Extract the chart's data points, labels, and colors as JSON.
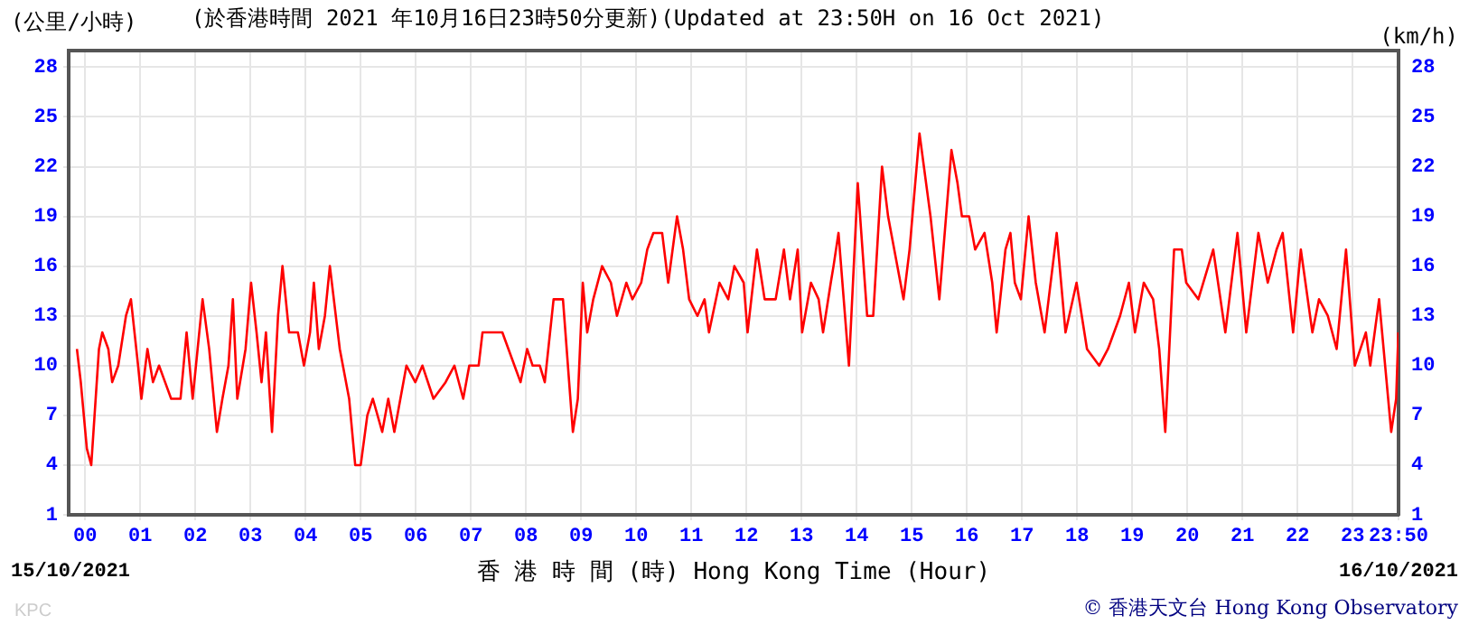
{
  "chart_data": {
    "type": "line",
    "title": "(於香港時間 2021 年10月16日23時50分更新)(Updated at 23:50H on 16 Oct 2021)",
    "ylabel": "(公里/小時)",
    "y2label": "(km/h)",
    "xlabel": "香 港 時 間 (時) Hong Kong Time (Hour)",
    "annotations": [
      "15/10/2021",
      "16/10/2021",
      "© 香港天文台 Hong Kong Observatory",
      "KPC"
    ],
    "series": [
      {
        "color": "#ff0000",
        "x": [
          -0.15,
          -0.08,
          0.03,
          0.11,
          0.17,
          0.25,
          0.31,
          0.42,
          0.49,
          0.6,
          0.74,
          0.83,
          0.96,
          1.02,
          1.13,
          1.23,
          1.34,
          1.45,
          1.56,
          1.73,
          1.84,
          1.95,
          2.13,
          2.25,
          2.39,
          2.49,
          2.6,
          2.68,
          2.76,
          2.91,
          3.01,
          3.11,
          3.2,
          3.28,
          3.39,
          3.5,
          3.58,
          3.7,
          3.86,
          3.97,
          4.08,
          4.15,
          4.24,
          4.35,
          4.44,
          4.62,
          4.79,
          4.9,
          5.0,
          5.12,
          5.22,
          5.39,
          5.5,
          5.61,
          5.83,
          5.99,
          6.12,
          6.32,
          6.54,
          6.7,
          6.86,
          6.97,
          7.14,
          7.21,
          7.36,
          7.57,
          7.79,
          7.9,
          8.02,
          8.12,
          8.25,
          8.34,
          8.5,
          8.67,
          8.85,
          8.94,
          9.03,
          9.11,
          9.22,
          9.38,
          9.54,
          9.65,
          9.82,
          9.93,
          10.09,
          10.2,
          10.31,
          10.47,
          10.58,
          10.74,
          10.85,
          10.96,
          11.11,
          11.24,
          11.32,
          11.51,
          11.67,
          11.78,
          11.95,
          12.02,
          12.19,
          12.33,
          12.53,
          12.68,
          12.79,
          12.93,
          13.01,
          13.17,
          13.31,
          13.39,
          13.53,
          13.58,
          13.67,
          13.86,
          14.02,
          14.19,
          14.3,
          14.46,
          14.57,
          14.85,
          14.96,
          15.14,
          15.34,
          15.5,
          15.72,
          15.83,
          15.91,
          16.04,
          16.15,
          16.32,
          16.46,
          16.54,
          16.7,
          16.79,
          16.87,
          16.98,
          17.12,
          17.25,
          17.41,
          17.63,
          17.79,
          17.99,
          18.18,
          18.4,
          18.56,
          18.78,
          18.94,
          19.05,
          19.21,
          19.38,
          19.49,
          19.6,
          19.76,
          19.9,
          19.98,
          20.2,
          20.47,
          20.69,
          20.91,
          21.07,
          21.29,
          21.46,
          21.62,
          21.73,
          21.92,
          22.06,
          22.27,
          22.39,
          22.55,
          22.71,
          22.88,
          23.04,
          23.24,
          23.32,
          23.48,
          23.7,
          23.79,
          23.83
        ],
        "values": [
          11,
          9,
          5,
          4,
          7,
          11,
          12,
          11,
          9,
          10,
          13,
          14,
          10,
          8,
          11,
          9,
          10,
          9,
          8,
          8,
          12,
          8,
          14,
          11,
          6,
          8,
          10,
          14,
          8,
          11,
          15,
          12,
          9,
          12,
          6,
          13,
          16,
          12,
          12,
          10,
          12,
          15,
          11,
          13,
          16,
          11,
          8,
          4,
          4,
          7,
          8,
          6,
          8,
          6,
          10,
          9,
          10,
          8,
          9,
          10,
          8,
          10,
          10,
          12,
          12,
          12,
          10,
          9,
          11,
          10,
          10,
          9,
          14,
          14,
          6,
          8,
          15,
          12,
          14,
          16,
          15,
          13,
          15,
          14,
          15,
          17,
          18,
          18,
          15,
          19,
          17,
          14,
          13,
          14,
          12,
          15,
          14,
          16,
          15,
          12,
          17,
          14,
          14,
          17,
          14,
          17,
          12,
          15,
          14,
          12,
          15,
          16,
          18,
          10,
          21,
          13,
          13,
          22,
          19,
          14,
          17,
          24,
          19,
          14,
          23,
          21,
          19,
          19,
          17,
          18,
          15,
          12,
          17,
          18,
          15,
          14,
          19,
          15,
          12,
          18,
          12,
          15,
          11,
          10,
          11,
          13,
          15,
          12,
          15,
          14,
          11,
          6,
          17,
          17,
          15,
          14,
          17,
          12,
          18,
          12,
          18,
          15,
          17,
          18,
          12,
          17,
          12,
          14,
          13,
          11,
          17,
          10,
          12,
          10,
          14,
          6,
          8,
          12
        ]
      }
    ],
    "xlim": [
      -0.3,
      23.833
    ],
    "xticks": [
      {
        "value": 0,
        "label": "00"
      },
      {
        "value": 1,
        "label": "01"
      },
      {
        "value": 2,
        "label": "02"
      },
      {
        "value": 3,
        "label": "03"
      },
      {
        "value": 4,
        "label": "04"
      },
      {
        "value": 5,
        "label": "05"
      },
      {
        "value": 6,
        "label": "06"
      },
      {
        "value": 7,
        "label": "07"
      },
      {
        "value": 8,
        "label": "08"
      },
      {
        "value": 9,
        "label": "09"
      },
      {
        "value": 10,
        "label": "10"
      },
      {
        "value": 11,
        "label": "11"
      },
      {
        "value": 12,
        "label": "12"
      },
      {
        "value": 13,
        "label": "13"
      },
      {
        "value": 14,
        "label": "14"
      },
      {
        "value": 15,
        "label": "15"
      },
      {
        "value": 16,
        "label": "16"
      },
      {
        "value": 17,
        "label": "17"
      },
      {
        "value": 18,
        "label": "18"
      },
      {
        "value": 19,
        "label": "19"
      },
      {
        "value": 20,
        "label": "20"
      },
      {
        "value": 21,
        "label": "21"
      },
      {
        "value": 22,
        "label": "22"
      },
      {
        "value": 23,
        "label": "23"
      },
      {
        "value": 23.833,
        "label": "23:50"
      }
    ],
    "ylim": [
      1,
      29
    ],
    "yticks": [
      1,
      4,
      7,
      10,
      13,
      16,
      19,
      22,
      25,
      28
    ],
    "y2lim": [
      1,
      29
    ],
    "y2ticks": [
      1,
      4,
      7,
      10,
      13,
      16,
      19,
      22,
      25,
      28
    ],
    "grid": true,
    "legend": false,
    "marker": "none",
    "line_style": "solid"
  }
}
